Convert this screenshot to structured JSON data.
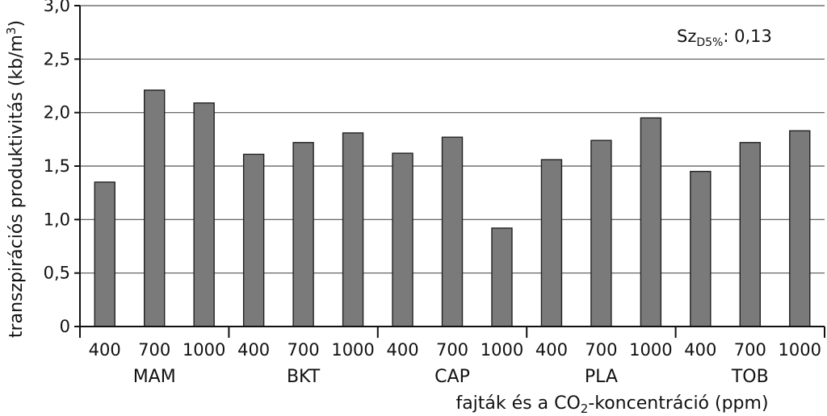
{
  "chart_data": {
    "type": "bar",
    "ylabel_main": "transzpirációs produktivitás (kb/m",
    "ylabel_sup": "3",
    "ylabel_end": ")",
    "xlabel_main": "fajták és a CO",
    "xlabel_sub": "2",
    "xlabel_end": "-koncentráció (ppm)",
    "annotation_main": "Sz",
    "annotation_sub": "D5%",
    "annotation_end": ": 0,13",
    "ylim": [
      0,
      3.0
    ],
    "yticks": [
      {
        "value": 0,
        "label": "0"
      },
      {
        "value": 0.5,
        "label": "0,5"
      },
      {
        "value": 1.0,
        "label": "1,0"
      },
      {
        "value": 1.5,
        "label": "1,5"
      },
      {
        "value": 2.0,
        "label": "2,0"
      },
      {
        "value": 2.5,
        "label": "2,5"
      },
      {
        "value": 3.0,
        "label": "3,0"
      }
    ],
    "grid": true,
    "bar_color": "#7a7a7a",
    "groups": [
      {
        "name": "MAM",
        "bars": [
          {
            "label": "400",
            "value": 1.35
          },
          {
            "label": "700",
            "value": 2.21
          },
          {
            "label": "1000",
            "value": 2.09
          }
        ]
      },
      {
        "name": "BKT",
        "bars": [
          {
            "label": "400",
            "value": 1.61
          },
          {
            "label": "700",
            "value": 1.72
          },
          {
            "label": "1000",
            "value": 1.81
          }
        ]
      },
      {
        "name": "CAP",
        "bars": [
          {
            "label": "400",
            "value": 1.62
          },
          {
            "label": "700",
            "value": 1.77
          },
          {
            "label": "1000",
            "value": 0.92
          }
        ]
      },
      {
        "name": "PLA",
        "bars": [
          {
            "label": "400",
            "value": 1.56
          },
          {
            "label": "700",
            "value": 1.74
          },
          {
            "label": "1000",
            "value": 1.95
          }
        ]
      },
      {
        "name": "TOB",
        "bars": [
          {
            "label": "400",
            "value": 1.45
          },
          {
            "label": "700",
            "value": 1.72
          },
          {
            "label": "1000",
            "value": 1.83
          }
        ]
      }
    ]
  }
}
